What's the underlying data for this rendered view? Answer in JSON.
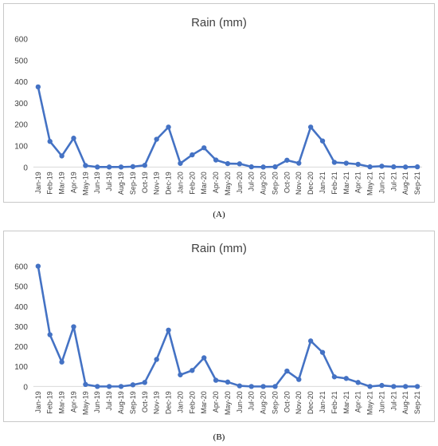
{
  "chart_data": [
    {
      "type": "line",
      "title": "Rain (mm)",
      "caption": "(A)",
      "xlabel": "",
      "ylabel": "",
      "ylim": [
        0,
        600
      ],
      "yticks": [
        "0",
        "100",
        "200",
        "300",
        "400",
        "500",
        "600"
      ],
      "grid": false,
      "legend": "none",
      "color": "#4472C4",
      "categories": [
        "Jan-19",
        "Feb-19",
        "Mar-19",
        "Apr-19",
        "May-19",
        "Jun-19",
        "Jul-19",
        "Aug-19",
        "Sep-19",
        "Oct-19",
        "Nov-19",
        "Dec-19",
        "Jan-20",
        "Feb-20",
        "Mar-20",
        "Apr-20",
        "May-20",
        "Jun-20",
        "Jul-20",
        "Aug-20",
        "Sep-20",
        "Oct-20",
        "Nov-20",
        "Dec-20",
        "Jan-21",
        "Feb-21",
        "Mar-21",
        "Apr-21",
        "May-21",
        "Jun-21",
        "Jul-21",
        "Aug-21",
        "Sep-21"
      ],
      "series": [
        {
          "values": [
            375,
            120,
            52,
            135,
            7,
            0,
            0,
            0,
            2,
            8,
            130,
            187,
            17,
            57,
            90,
            33,
            16,
            15,
            1,
            0,
            1,
            32,
            18,
            187,
            122,
            22,
            18,
            13,
            1,
            4,
            1,
            0,
            1
          ]
        }
      ]
    },
    {
      "type": "line",
      "title": "Rain (mm)",
      "caption": "(B)",
      "xlabel": "",
      "ylabel": "",
      "ylim": [
        0,
        600
      ],
      "yticks": [
        "0",
        "100",
        "200",
        "300",
        "400",
        "500",
        "600"
      ],
      "grid": false,
      "legend": "none",
      "color": "#4472C4",
      "categories": [
        "Jan-19",
        "Feb-19",
        "Mar-19",
        "Apr-19",
        "May-19",
        "Jun-19",
        "Jul-19",
        "Aug-19",
        "Sep-19",
        "Oct-19",
        "Nov-19",
        "Dec-19",
        "Jan-20",
        "Feb-20",
        "Mar-20",
        "Apr-20",
        "May-20",
        "Jun-20",
        "Jul-20",
        "Aug-20",
        "Sep-20",
        "Oct-20",
        "Nov-20",
        "Dec-20",
        "Jan-21",
        "Feb-21",
        "Mar-21",
        "Apr-21",
        "May-21",
        "Jun-21",
        "Jul-21",
        "Aug-21",
        "Sep-21"
      ],
      "series": [
        {
          "values": [
            600,
            258,
            122,
            298,
            10,
            0,
            0,
            0,
            8,
            20,
            135,
            281,
            58,
            80,
            143,
            31,
            22,
            3,
            0,
            0,
            0,
            77,
            35,
            227,
            170,
            48,
            40,
            20,
            0,
            5,
            0,
            0,
            0
          ]
        }
      ]
    }
  ]
}
